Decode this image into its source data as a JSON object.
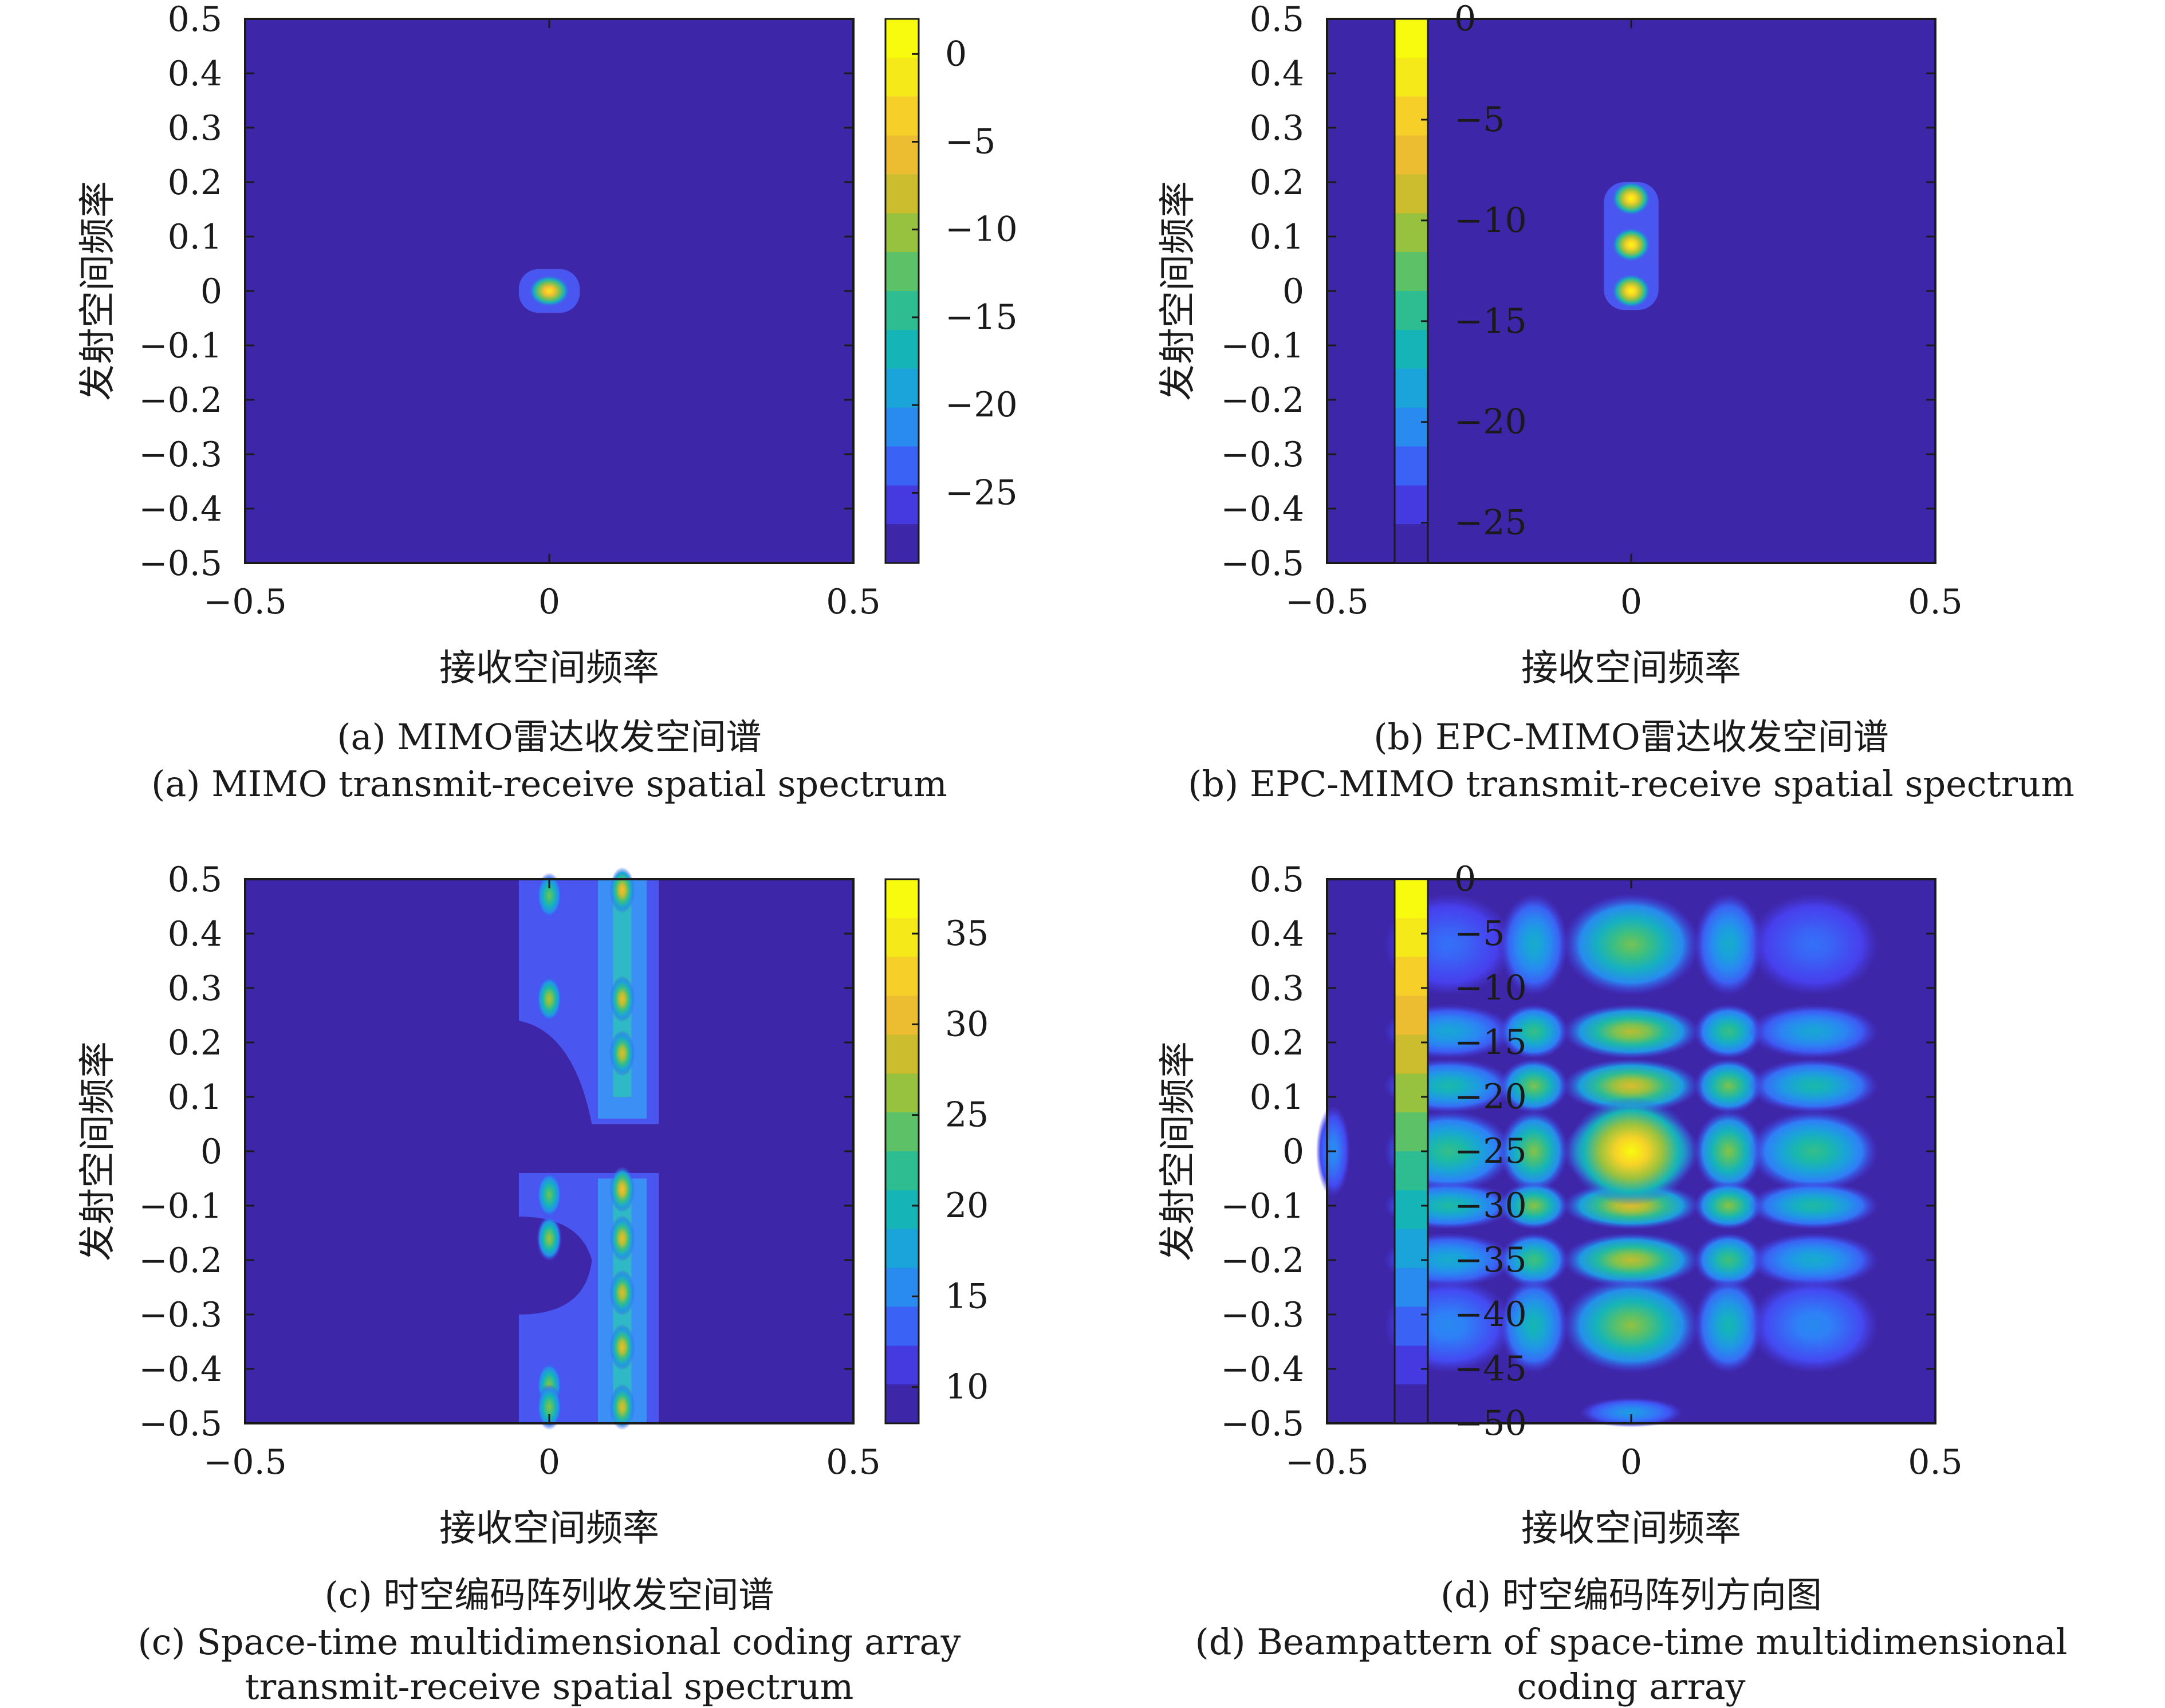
{
  "colors": {
    "colormap": [
      "#3e26a8",
      "#4740f0",
      "#2f7ff8",
      "#1aa2dd",
      "#14b8b0",
      "#3ebf7e",
      "#8cc343",
      "#d0bc2c",
      "#f9bd32",
      "#f5e41e",
      "#f9fb0e"
    ],
    "background": "#3e26a8",
    "axis": "#1a1a1a"
  },
  "chart_data": [
    {
      "type": "heatmap",
      "xlabel": "接收空间频率",
      "ylabel": "发射空间频率",
      "xlim": [
        -0.5,
        0.5
      ],
      "ylim": [
        -0.5,
        0.5
      ],
      "xticks": [
        "−0.5",
        "0",
        "0.5"
      ],
      "yticks": [
        "0.5",
        "0.4",
        "0.3",
        "0.2",
        "0.1",
        "0",
        "−0.1",
        "−0.2",
        "−0.3",
        "−0.4",
        "−0.5"
      ],
      "clim": [
        -29,
        2
      ],
      "colorbar_ticks": [
        "0",
        "−5",
        "−10",
        "−15",
        "−20",
        "−25"
      ],
      "colorbar_values": [
        0,
        -5,
        -10,
        -15,
        -20,
        -25
      ],
      "caption_cn": "(a) MIMO雷达收发空间谱",
      "caption_en": "(a) MIMO transmit-receive spatial spectrum",
      "peaks": [
        {
          "x": 0.0,
          "y": 0.0,
          "value": 0
        }
      ]
    },
    {
      "type": "heatmap",
      "xlabel": "接收空间频率",
      "ylabel": "发射空间频率",
      "xlim": [
        -0.5,
        0.5
      ],
      "ylim": [
        -0.5,
        0.5
      ],
      "xticks": [
        "−0.5",
        "0",
        "0.5"
      ],
      "yticks": [
        "0.5",
        "0.4",
        "0.3",
        "0.2",
        "0.1",
        "0",
        "−0.1",
        "−0.2",
        "−0.3",
        "−0.4",
        "−0.5"
      ],
      "clim": [
        -27,
        0
      ],
      "colorbar_ticks": [
        "0",
        "−5",
        "−10",
        "−15",
        "−20",
        "−25"
      ],
      "colorbar_values": [
        0,
        -5,
        -10,
        -15,
        -20,
        -25
      ],
      "caption_cn": "(b) EPC-MIMO雷达收发空间谱",
      "caption_en": "(b) EPC-MIMO transmit-receive spatial spectrum",
      "peaks": [
        {
          "x": 0.0,
          "y": 0.0,
          "value": 0
        },
        {
          "x": 0.0,
          "y": 0.085,
          "value": 0
        },
        {
          "x": 0.0,
          "y": 0.17,
          "value": 0
        }
      ]
    },
    {
      "type": "heatmap",
      "xlabel": "接收空间频率",
      "ylabel": "发射空间频率",
      "xlim": [
        -0.5,
        0.5
      ],
      "ylim": [
        -0.5,
        0.5
      ],
      "xticks": [
        "−0.5",
        "0",
        "0.5"
      ],
      "yticks": [
        "0.5",
        "0.4",
        "0.3",
        "0.2",
        "0.1",
        "0",
        "−0.1",
        "−0.2",
        "−0.3",
        "−0.4",
        "−0.5"
      ],
      "clim": [
        8,
        38
      ],
      "colorbar_ticks": [
        "35",
        "30",
        "25",
        "20",
        "15",
        "10"
      ],
      "colorbar_values": [
        35,
        30,
        25,
        20,
        15,
        10
      ],
      "caption_cn": "(c) 时空编码阵列收发空间谱",
      "caption_en_lines": [
        "(c) Space-time multidimensional coding array",
        "transmit-receive spatial spectrum"
      ],
      "peaks": [
        {
          "x": 0.0,
          "y": 0.47,
          "value": 25
        },
        {
          "x": 0.0,
          "y": 0.28,
          "value": 28
        },
        {
          "x": 0.0,
          "y": -0.08,
          "value": 25
        },
        {
          "x": 0.0,
          "y": -0.16,
          "value": 27
        },
        {
          "x": 0.0,
          "y": -0.43,
          "value": 26
        },
        {
          "x": 0.0,
          "y": -0.47,
          "value": 26
        },
        {
          "x": 0.12,
          "y": 0.48,
          "value": 32
        },
        {
          "x": 0.12,
          "y": 0.28,
          "value": 31
        },
        {
          "x": 0.12,
          "y": 0.18,
          "value": 30
        },
        {
          "x": 0.12,
          "y": -0.07,
          "value": 32
        },
        {
          "x": 0.12,
          "y": -0.16,
          "value": 31
        },
        {
          "x": 0.12,
          "y": -0.26,
          "value": 30
        },
        {
          "x": 0.12,
          "y": -0.36,
          "value": 31
        },
        {
          "x": 0.12,
          "y": -0.47,
          "value": 30
        }
      ]
    },
    {
      "type": "heatmap",
      "xlabel": "接收空间频率",
      "ylabel": "发射空间频率",
      "xlim": [
        -0.5,
        0.5
      ],
      "ylim": [
        -0.5,
        0.5
      ],
      "xticks": [
        "−0.5",
        "0",
        "0.5"
      ],
      "yticks": [
        "0.5",
        "0.4",
        "0.3",
        "0.2",
        "0.1",
        "0",
        "−0.1",
        "−0.2",
        "−0.3",
        "−0.4",
        "−0.5"
      ],
      "clim": [
        -50,
        0
      ],
      "colorbar_ticks": [
        "0",
        "−5",
        "−10",
        "−15",
        "−20",
        "−25",
        "−30",
        "−35",
        "−40",
        "−45",
        "−50"
      ],
      "colorbar_values": [
        0,
        -5,
        -10,
        -15,
        -20,
        -25,
        -30,
        -35,
        -40,
        -45,
        -50
      ],
      "caption_cn": "(d) 时空编码阵列方向图",
      "caption_en_lines": [
        "(d) Beampattern of space-time multidimensional",
        "coding array"
      ],
      "lobe_columns": [
        -0.3,
        -0.16,
        0.0,
        0.16,
        0.3
      ],
      "lobe_rows": [
        0.38,
        0.22,
        0.12,
        0.0,
        -0.1,
        -0.2,
        -0.32
      ],
      "peak": {
        "x": 0.0,
        "y": 0.0,
        "value": 0
      }
    }
  ]
}
